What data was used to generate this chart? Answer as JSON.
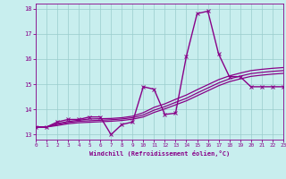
{
  "xlabel": "Windchill (Refroidissement éolien,°C)",
  "background_color": "#c8eeee",
  "grid_color": "#99cccc",
  "line_color": "#880088",
  "xlim": [
    0,
    23
  ],
  "ylim": [
    12.8,
    18.2
  ],
  "yticks": [
    13,
    14,
    15,
    16,
    17,
    18
  ],
  "xticks": [
    0,
    1,
    2,
    3,
    4,
    5,
    6,
    7,
    8,
    9,
    10,
    11,
    12,
    13,
    14,
    15,
    16,
    17,
    18,
    19,
    20,
    21,
    22,
    23
  ],
  "series": [
    {
      "x": [
        0,
        1,
        2,
        3,
        4,
        5,
        6,
        7,
        8,
        9,
        10,
        11,
        12,
        13,
        14,
        15,
        16,
        17,
        18,
        19,
        20,
        21,
        22,
        23
      ],
      "y": [
        13.3,
        13.3,
        13.5,
        13.6,
        13.6,
        13.7,
        13.7,
        13.0,
        13.4,
        13.5,
        14.9,
        14.8,
        13.8,
        13.85,
        16.1,
        17.8,
        17.9,
        16.2,
        15.3,
        15.3,
        14.9,
        14.9,
        14.9,
        14.9
      ],
      "marker": "x",
      "markersize": 2.8,
      "linewidth": 1.0,
      "zorder": 4
    },
    {
      "x": [
        0,
        1,
        2,
        3,
        4,
        5,
        6,
        7,
        8,
        9,
        10,
        11,
        12,
        13,
        14,
        15,
        16,
        17,
        18,
        19,
        20,
        21,
        22,
        23
      ],
      "y": [
        13.3,
        13.3,
        13.44,
        13.52,
        13.57,
        13.62,
        13.63,
        13.64,
        13.67,
        13.73,
        13.87,
        14.08,
        14.22,
        14.4,
        14.57,
        14.78,
        14.98,
        15.18,
        15.33,
        15.44,
        15.54,
        15.59,
        15.63,
        15.66
      ],
      "marker": null,
      "markersize": 0,
      "linewidth": 0.9,
      "zorder": 3
    },
    {
      "x": [
        0,
        1,
        2,
        3,
        4,
        5,
        6,
        7,
        8,
        9,
        10,
        11,
        12,
        13,
        14,
        15,
        16,
        17,
        18,
        19,
        20,
        21,
        22,
        23
      ],
      "y": [
        13.3,
        13.3,
        13.4,
        13.48,
        13.53,
        13.55,
        13.57,
        13.59,
        13.62,
        13.67,
        13.78,
        13.97,
        14.11,
        14.28,
        14.44,
        14.65,
        14.85,
        15.05,
        15.21,
        15.32,
        15.42,
        15.47,
        15.51,
        15.54
      ],
      "marker": null,
      "markersize": 0,
      "linewidth": 0.9,
      "zorder": 3
    },
    {
      "x": [
        0,
        1,
        2,
        3,
        4,
        5,
        6,
        7,
        8,
        9,
        10,
        11,
        12,
        13,
        14,
        15,
        16,
        17,
        18,
        19,
        20,
        21,
        22,
        23
      ],
      "y": [
        13.3,
        13.3,
        13.36,
        13.43,
        13.47,
        13.49,
        13.51,
        13.53,
        13.56,
        13.61,
        13.7,
        13.88,
        14.02,
        14.18,
        14.34,
        14.54,
        14.74,
        14.94,
        15.1,
        15.21,
        15.31,
        15.36,
        15.4,
        15.43
      ],
      "marker": null,
      "markersize": 0,
      "linewidth": 0.9,
      "zorder": 3
    }
  ]
}
